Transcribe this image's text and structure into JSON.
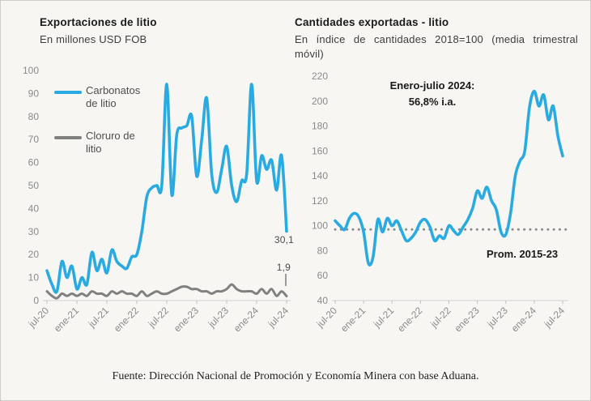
{
  "page": {
    "background": "#f7f6f3",
    "border_color": "#cfcdc9"
  },
  "left_chart": {
    "title": "Exportaciones de litio",
    "subtitle": "En millones USD FOB",
    "legend": [
      {
        "label_line1": "Carbonatos",
        "label_line2": "de litio",
        "color": "#29abe2"
      },
      {
        "label_line1": "Cloruro de",
        "label_line2": "litio",
        "color": "#808080"
      }
    ],
    "end_labels": {
      "carbonatos": "30,1",
      "cloruro": "1,9"
    }
  },
  "right_chart": {
    "title": "Cantidades exportadas - litio",
    "subtitle_line1": "En índice de cantidades 2018=100 (media trimestral",
    "subtitle_line2": "móvil)",
    "annotation_line1": "Enero-julio 2024:",
    "annotation_line2": "56,8% i.a.",
    "reference_label": "Prom. 2015-23"
  },
  "footer": {
    "text": "Fuente: Dirección Nacional de Promoción y Economía Minera con base Aduana."
  },
  "chart_data": [
    {
      "type": "line",
      "title": "Exportaciones de litio",
      "subtitle": "En millones USD FOB",
      "x_start": "jul-20",
      "x_end": "jul-24",
      "frequency": "monthly",
      "x_tick_labels": [
        "jul-20",
        "ene-21",
        "jul-21",
        "ene-22",
        "jul-22",
        "ene-23",
        "jul-23",
        "ene-24",
        "jul-24"
      ],
      "y_ticks": [
        0,
        10,
        20,
        30,
        40,
        50,
        60,
        70,
        80,
        90,
        100
      ],
      "ylim": [
        0,
        100
      ],
      "grid": false,
      "legend_position": "top-left-inside",
      "series": [
        {
          "name": "Carbonatos de litio",
          "color": "#29abe2",
          "stroke_width": 3.6,
          "values": [
            13,
            7,
            4,
            17,
            10,
            15,
            5,
            10,
            7,
            21,
            13,
            18,
            12,
            22,
            17,
            15,
            14,
            19,
            20,
            30,
            45,
            49,
            50,
            50,
            94,
            46,
            72,
            75,
            76,
            80,
            54,
            70,
            88,
            55,
            47,
            57,
            67,
            50,
            43,
            52,
            55,
            94,
            52,
            63,
            57,
            61,
            48,
            63,
            30.1
          ],
          "last_value_label": "30,1"
        },
        {
          "name": "Cloruro de litio",
          "color": "#808080",
          "stroke_width": 3,
          "values": [
            4,
            2,
            1,
            3,
            2,
            3,
            2,
            3,
            2,
            4,
            3,
            3,
            2,
            4,
            3,
            4,
            3,
            3,
            2,
            4,
            2,
            3,
            4,
            3,
            3,
            4,
            5,
            6,
            6,
            5,
            5,
            4,
            4,
            3,
            4,
            4,
            5,
            7,
            5,
            4,
            4,
            4,
            3,
            5,
            3,
            5,
            2,
            4,
            1.9
          ],
          "last_value_label": "1,9"
        }
      ]
    },
    {
      "type": "line",
      "title": "Cantidades exportadas - litio",
      "subtitle": "En índice de cantidades 2018=100 (media trimestral móvil)",
      "x_start": "jul-20",
      "x_end": "jul-24",
      "frequency": "monthly",
      "x_tick_labels": [
        "jul-20",
        "ene-21",
        "jul-21",
        "ene-22",
        "jul-22",
        "ene-23",
        "jul-23",
        "ene-24",
        "jul-24"
      ],
      "y_ticks": [
        40,
        60,
        80,
        100,
        120,
        140,
        160,
        180,
        200,
        220
      ],
      "ylim": [
        40,
        220
      ],
      "grid": false,
      "annotation": "Enero-julio 2024: 56,8% i.a.",
      "series": [
        {
          "name": "Índice de cantidades exportadas de litio",
          "color": "#29abe2",
          "stroke_width": 3.6,
          "values": [
            104,
            100,
            97,
            106,
            110,
            107,
            95,
            70,
            75,
            105,
            95,
            106,
            100,
            104,
            96,
            88,
            90,
            95,
            103,
            105,
            99,
            88,
            92,
            90,
            100,
            96,
            93,
            99,
            105,
            114,
            128,
            122,
            131,
            120,
            113,
            95,
            93,
            110,
            140,
            152,
            160,
            195,
            208,
            196,
            205,
            185,
            196,
            172,
            156
          ]
        }
      ],
      "reference_line": {
        "label": "Prom. 2015-23",
        "value": 97,
        "color": "#8c8c8c",
        "style": "dotted"
      }
    }
  ],
  "theme": {
    "accent_blue": "#29abe2",
    "series_gray": "#808080",
    "axis_line": "#d0d0d0",
    "tick_mark": "#c0c0c0",
    "tick_label": "#8a8a8a"
  }
}
